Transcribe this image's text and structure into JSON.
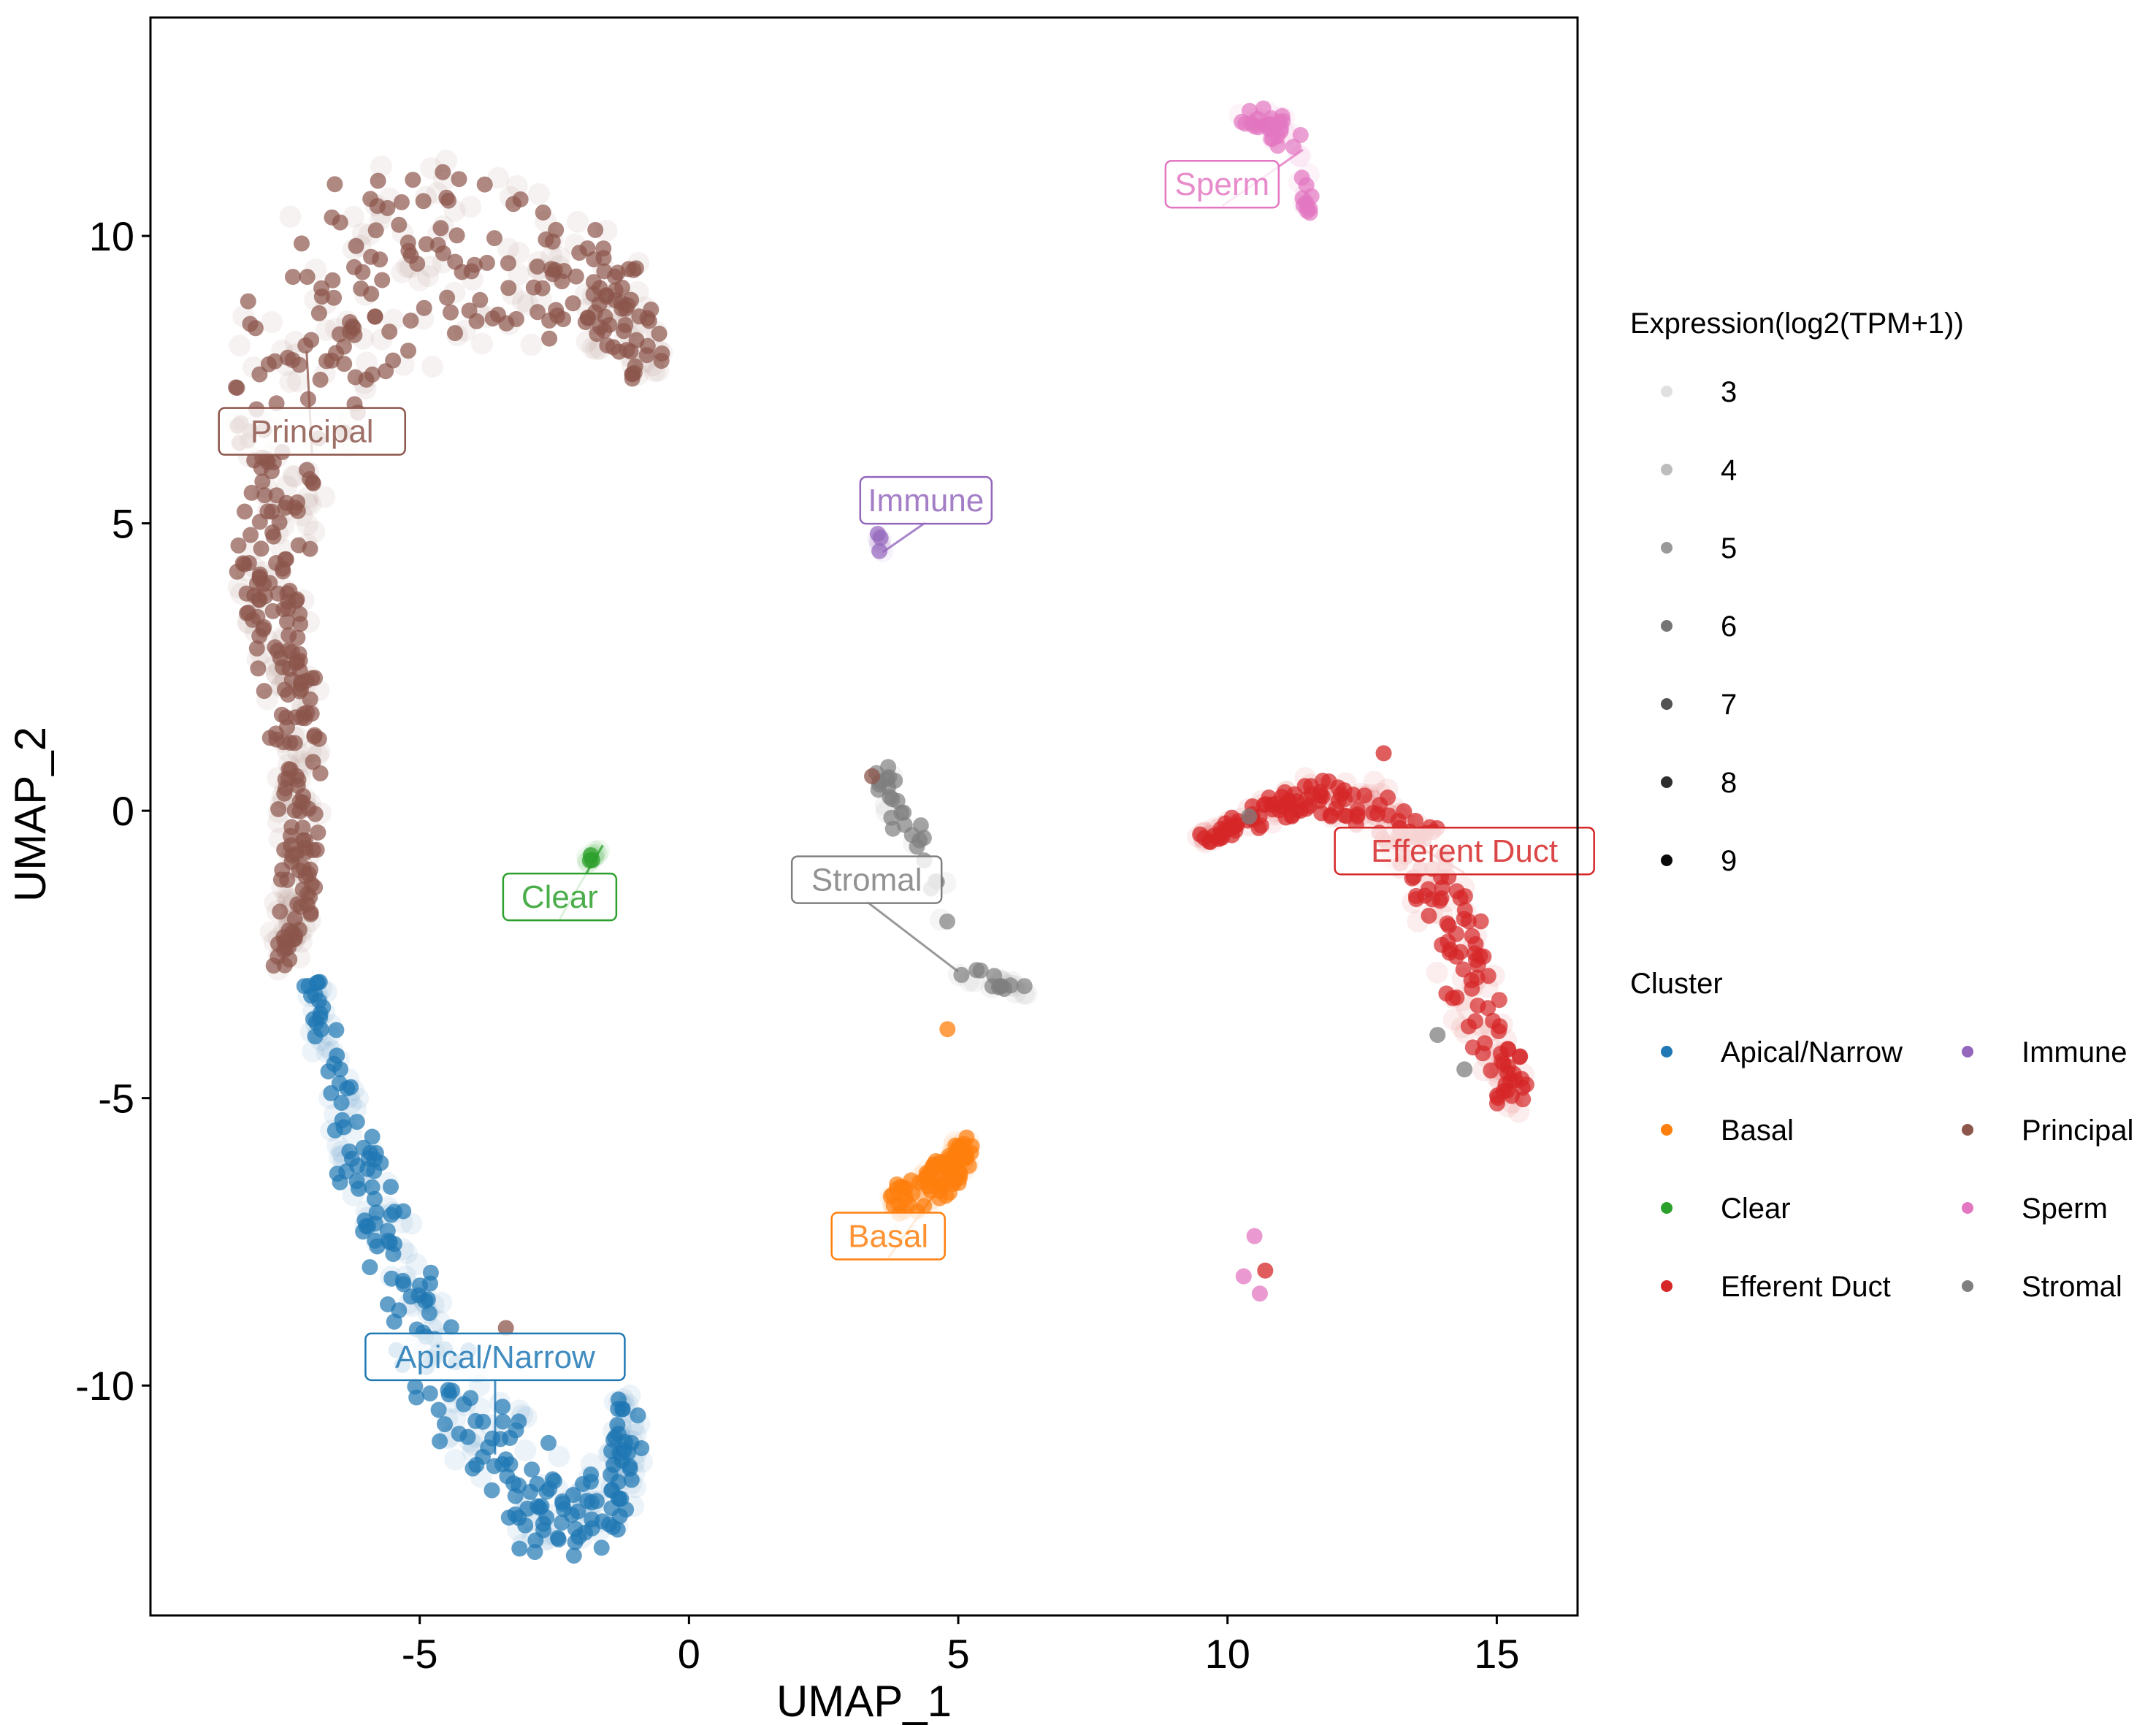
{
  "chart_data": {
    "type": "scatter",
    "xlabel": "UMAP_1",
    "ylabel": "UMAP_2",
    "xlim": [
      -10,
      16.5
    ],
    "ylim": [
      -14,
      13.8
    ],
    "xticks": [
      -5,
      0,
      5,
      10,
      15
    ],
    "yticks": [
      -10,
      -5,
      0,
      5,
      10
    ],
    "xtick_labels": [
      "-5",
      "0",
      "5",
      "10",
      "15"
    ],
    "ytick_labels": [
      "-10",
      "-5",
      "0",
      "5",
      "10"
    ],
    "grid": false,
    "legend_placement": "right",
    "size_legend": {
      "title": "Expression(log2(TPM+1))",
      "values": [
        3,
        4,
        5,
        6,
        7,
        8,
        9
      ],
      "labels": [
        "3",
        "4",
        "5",
        "6",
        "7",
        "8",
        "9"
      ]
    },
    "color_legend": {
      "title": "Cluster",
      "entries": [
        {
          "name": "Apical/Narrow",
          "color": "#1f77b4"
        },
        {
          "name": "Basal",
          "color": "#ff7f0e"
        },
        {
          "name": "Clear",
          "color": "#2ca02c"
        },
        {
          "name": "Efferent Duct",
          "color": "#d62728"
        },
        {
          "name": "Immune",
          "color": "#9467bd"
        },
        {
          "name": "Principal",
          "color": "#8c564b"
        },
        {
          "name": "Sperm",
          "color": "#e377c2"
        },
        {
          "name": "Stromal",
          "color": "#7f7f7f"
        }
      ]
    },
    "cluster_labels": [
      {
        "name": "Principal",
        "x": -7.0,
        "y": 6.6,
        "color": "#8c564b"
      },
      {
        "name": "Immune",
        "x": 4.4,
        "y": 5.4,
        "color": "#9467bd"
      },
      {
        "name": "Sperm",
        "x": 9.9,
        "y": 10.9,
        "color": "#e377c2"
      },
      {
        "name": "Clear",
        "x": -2.4,
        "y": -1.5,
        "color": "#2ca02c"
      },
      {
        "name": "Stromal",
        "x": 3.3,
        "y": -1.2,
        "color": "#7f7f7f"
      },
      {
        "name": "Efferent Duct",
        "x": 14.4,
        "y": -0.7,
        "color": "#d62728"
      },
      {
        "name": "Basal",
        "x": 3.7,
        "y": -7.4,
        "color": "#ff7f0e"
      },
      {
        "name": "Apical/Narrow",
        "x": -3.6,
        "y": -9.5,
        "color": "#1f77b4"
      }
    ],
    "clusters": [
      {
        "name": "Principal",
        "color": "#8c564b",
        "count": 650,
        "anchors": [
          [
            -7.5,
            -2.6
          ],
          [
            -7.3,
            -1.2
          ],
          [
            -7.2,
            0.5
          ],
          [
            -7.4,
            2.3
          ],
          [
            -7.8,
            4.0
          ],
          [
            -7.6,
            6.0
          ],
          [
            -7.1,
            8.0
          ],
          [
            -6.0,
            9.3
          ],
          [
            -4.5,
            9.8
          ],
          [
            -3.0,
            9.6
          ],
          [
            -1.5,
            8.9
          ],
          [
            -0.8,
            7.8
          ]
        ],
        "width": [
          0.35,
          0.4,
          0.45,
          0.55,
          0.7,
          1.0,
          1.5,
          1.9,
          1.9,
          1.6,
          0.9,
          0.4
        ]
      },
      {
        "name": "Apical/Narrow",
        "color": "#1f77b4",
        "count": 380,
        "anchors": [
          [
            -7.0,
            -2.8
          ],
          [
            -6.6,
            -4.5
          ],
          [
            -6.0,
            -6.5
          ],
          [
            -5.3,
            -8.3
          ],
          [
            -4.5,
            -9.8
          ],
          [
            -3.6,
            -11.2
          ],
          [
            -2.6,
            -12.3
          ],
          [
            -1.8,
            -12.2
          ],
          [
            -1.2,
            -11.4
          ],
          [
            -1.2,
            -10.2
          ]
        ],
        "width": [
          0.2,
          0.35,
          0.5,
          0.6,
          0.8,
          1.0,
          0.8,
          0.7,
          0.4,
          0.2
        ]
      },
      {
        "name": "Efferent Duct",
        "color": "#d62728",
        "count": 330,
        "anchors": [
          [
            9.5,
            -0.5
          ],
          [
            10.5,
            -0.1
          ],
          [
            11.6,
            0.3
          ],
          [
            12.6,
            0.1
          ],
          [
            13.5,
            -0.6
          ],
          [
            14.0,
            -1.6
          ],
          [
            14.5,
            -2.8
          ],
          [
            14.9,
            -4.0
          ],
          [
            15.3,
            -5.0
          ]
        ],
        "width": [
          0.1,
          0.25,
          0.35,
          0.45,
          0.55,
          0.6,
          0.6,
          0.5,
          0.3
        ]
      },
      {
        "name": "Basal",
        "color": "#ff7f0e",
        "count": 140,
        "anchors": [
          [
            3.8,
            -6.8
          ],
          [
            4.4,
            -6.6
          ],
          [
            5.0,
            -6.1
          ],
          [
            5.1,
            -5.8
          ]
        ],
        "width": [
          0.25,
          0.35,
          0.3,
          0.15
        ]
      },
      {
        "name": "Stromal",
        "color": "#7f7f7f",
        "count": 60,
        "anchors": [
          [
            3.5,
            0.8
          ],
          [
            3.8,
            0.1
          ],
          [
            4.5,
            -0.8
          ],
          [
            5.0,
            -2.8
          ],
          [
            5.8,
            -3.0
          ],
          [
            6.2,
            -3.1
          ]
        ],
        "width": [
          0.15,
          0.3,
          0.2,
          0.15,
          0.15,
          0.12
        ]
      },
      {
        "name": "Sperm",
        "color": "#e377c2",
        "count": 55,
        "anchors": [
          [
            10.3,
            12.1
          ],
          [
            10.9,
            11.9
          ],
          [
            11.4,
            11.5
          ],
          [
            11.5,
            10.4
          ]
        ],
        "width": [
          0.2,
          0.3,
          0.25,
          0.1
        ]
      },
      {
        "name": "Clear",
        "color": "#2ca02c",
        "count": 12,
        "anchors": [
          [
            -1.9,
            -0.9
          ],
          [
            -1.6,
            -0.6
          ]
        ],
        "width": [
          0.06,
          0.06
        ]
      },
      {
        "name": "Immune",
        "color": "#9467bd",
        "count": 8,
        "anchors": [
          [
            3.5,
            4.8
          ],
          [
            3.6,
            4.5
          ]
        ],
        "width": [
          0.06,
          0.06
        ]
      }
    ],
    "extra_points": [
      {
        "x": 4.8,
        "y": -3.8,
        "color": "#ff7f0e"
      },
      {
        "x": 10.5,
        "y": -7.4,
        "color": "#e377c2"
      },
      {
        "x": 10.3,
        "y": -8.1,
        "color": "#e377c2"
      },
      {
        "x": 10.6,
        "y": -8.4,
        "color": "#e377c2"
      },
      {
        "x": 10.7,
        "y": -8.0,
        "color": "#d62728"
      },
      {
        "x": 12.9,
        "y": 1.0,
        "color": "#d62728"
      },
      {
        "x": -3.4,
        "y": -9.0,
        "color": "#8c564b"
      },
      {
        "x": 3.4,
        "y": 0.6,
        "color": "#8c564b"
      },
      {
        "x": 10.4,
        "y": -0.1,
        "color": "#7f7f7f"
      },
      {
        "x": 13.9,
        "y": -3.9,
        "color": "#7f7f7f"
      },
      {
        "x": 14.4,
        "y": -4.5,
        "color": "#7f7f7f"
      }
    ]
  }
}
